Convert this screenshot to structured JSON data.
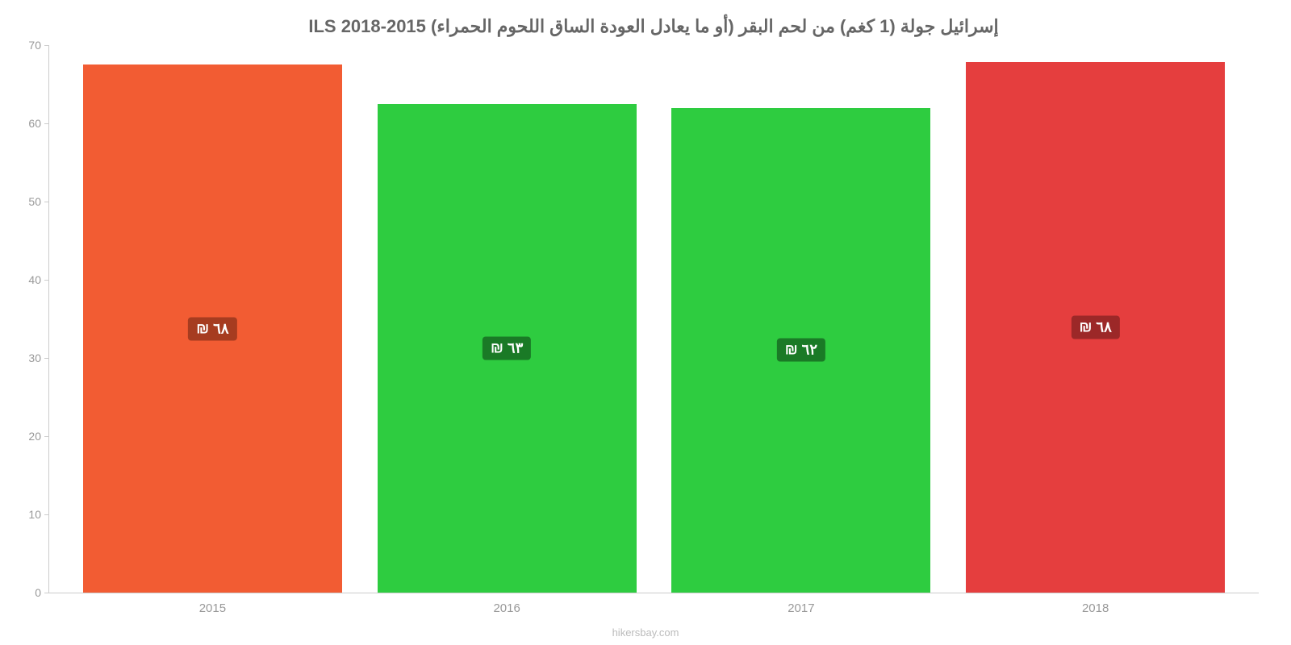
{
  "chart": {
    "type": "bar",
    "title": "إسرائيل جولة (1 كغم) من لحم البقر (أو ما يعادل العودة الساق اللحوم الحمراء) ILS 2018-2015",
    "title_fontsize": 22,
    "title_color": "#666666",
    "background_color": "#ffffff",
    "ylim": [
      0,
      70
    ],
    "ytick_step": 10,
    "yticks": [
      0,
      10,
      20,
      30,
      40,
      50,
      60,
      70
    ],
    "axis_color": "#cccccc",
    "tick_label_color": "#999999",
    "tick_label_fontsize": 14,
    "categories": [
      "2015",
      "2016",
      "2017",
      "2018"
    ],
    "values": [
      67.5,
      62.5,
      62,
      67.8
    ],
    "bar_colors": [
      "#f25c33",
      "#2ecc40",
      "#2ecc40",
      "#e53e3e"
    ],
    "bar_labels": [
      "٦٨ ₪",
      "٦٣ ₪",
      "٦٢ ₪",
      "٦٨ ₪"
    ],
    "bar_label_bg_colors": [
      "#a63c20",
      "#1a7a26",
      "#1a7a26",
      "#9c2828"
    ],
    "bar_label_color": "#ffffff",
    "bar_label_fontsize": 18,
    "bar_width": 0.88,
    "x_label_fontsize": 15,
    "x_label_color": "#999999",
    "attribution": "hikersbay.com",
    "attribution_color": "#bbbbbb",
    "attribution_fontsize": 13
  }
}
